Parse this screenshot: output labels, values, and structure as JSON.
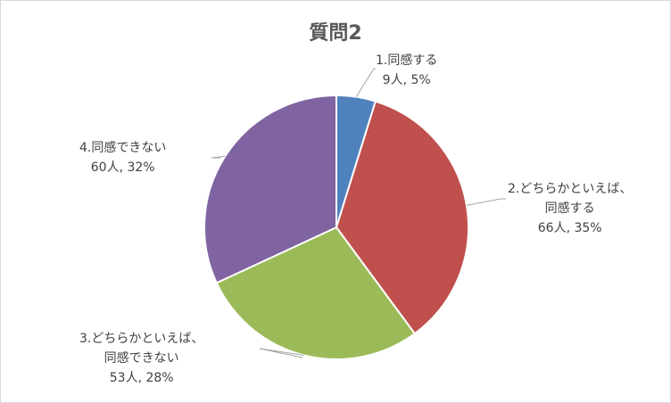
{
  "chart_data": {
    "type": "pie",
    "title": "質問2",
    "categories": [
      "1.同感する",
      "2.どちらかといえば、同感する",
      "3.どちらかといえば、同感できない",
      "4.同感できない"
    ],
    "values": [
      9,
      66,
      53,
      60
    ],
    "percents": [
      "5%",
      "35%",
      "28%",
      "32%"
    ],
    "colors": [
      "#4f81bd",
      "#c0504d",
      "#9bbb59",
      "#8064a2"
    ],
    "labels": [
      {
        "lines": [
          "1.同感する",
          "9人, 5%"
        ]
      },
      {
        "lines": [
          "2.どちらかといえば、",
          "同感する",
          "66人, 35%"
        ]
      },
      {
        "lines": [
          "3.どちらかといえば、",
          "同感できない",
          "53人, 28%"
        ]
      },
      {
        "lines": [
          "4.同感できない",
          "60人, 32%"
        ]
      }
    ],
    "start_angle": "12 o'clock",
    "direction": "clockwise",
    "legend": "none"
  }
}
